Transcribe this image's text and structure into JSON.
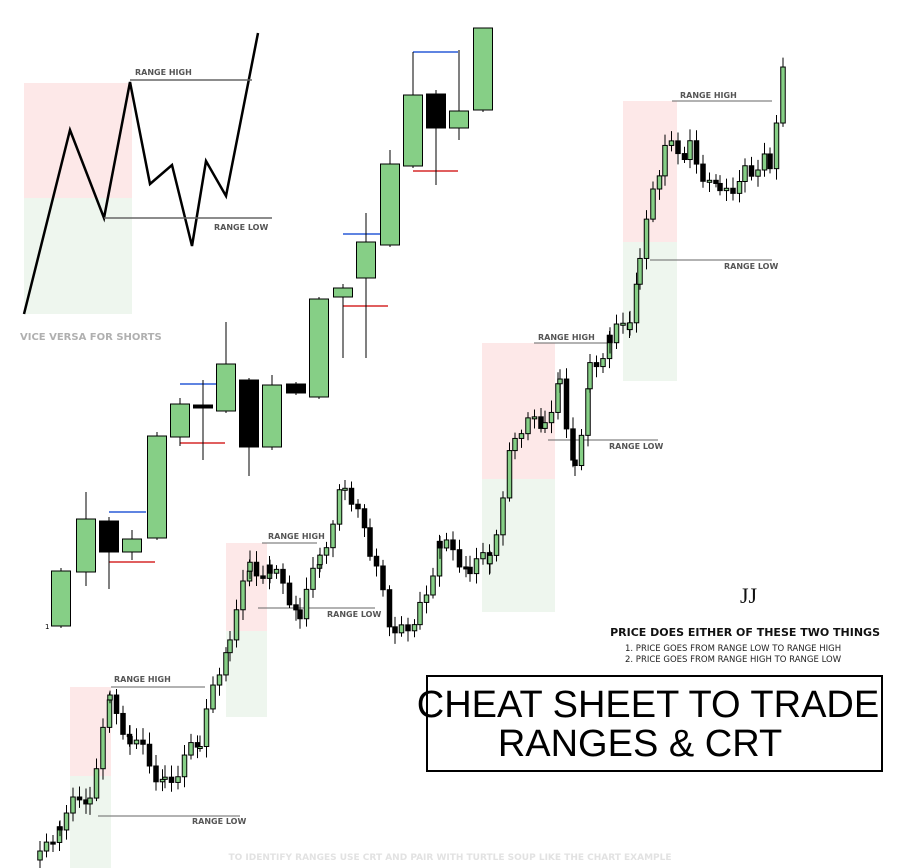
{
  "diagram": {
    "range_high": "RANGE HIGH",
    "range_low": "RANGE LOW",
    "note": "VICE VERSA FOR SHORTS"
  },
  "marker": "1",
  "ranges": [
    {
      "high_label": "RANGE HIGH",
      "low_label": "RANGE LOW"
    },
    {
      "high_label": "RANGE HIGH",
      "low_label": "RANGE LOW"
    },
    {
      "high_label": "RANGE HIGH",
      "low_label": "RANGE LOW"
    },
    {
      "high_label": "RANGE HIGH",
      "low_label": "RANGE LOW"
    }
  ],
  "logo": "JJ",
  "info": {
    "heading": "PRICE DOES EITHER OF THESE TWO THINGS",
    "points": [
      "1. PRICE GOES FROM RANGE LOW TO RANGE HIGH",
      "2. PRICE GOES FROM RANGE HIGH TO RANGE LOW"
    ]
  },
  "title": {
    "line1": "CHEAT SHEET TO TRADE",
    "line2": "RANGES & CRT"
  },
  "footer": "TO IDENTIFY RANGES USE CRT AND PAIR WITH TURTLE SOUP LIKE THE CHART EXAMPLE"
}
